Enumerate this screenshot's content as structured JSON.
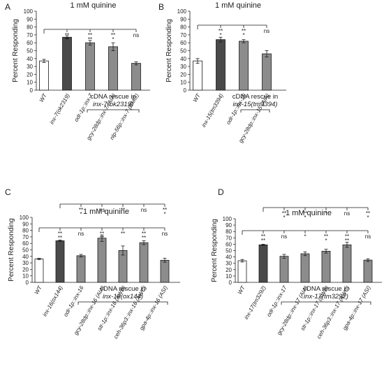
{
  "chart_data": [
    {
      "type": "bar",
      "panel": "A",
      "title": "1 mM quinine",
      "ylabel": "Percent Responding",
      "ylim": [
        0,
        100
      ],
      "yticks": [
        0,
        10,
        20,
        30,
        40,
        50,
        60,
        70,
        80,
        90,
        100
      ],
      "categories": [
        "WT",
        "inx-7(ok2319)",
        "odr-1p::inx-7",
        "gcy-28dp::inx-7 (AIA)",
        "nlp-56p::inx-7 (RMG)"
      ],
      "values": [
        37,
        67,
        60,
        55,
        34
      ],
      "errors": [
        2,
        2,
        3,
        5,
        2
      ],
      "fill": [
        "white",
        "dark",
        "gray",
        "gray",
        "gray"
      ],
      "rescue_label": [
        "cDNA rescue in",
        "inx-7(ok2319)"
      ],
      "rescue_start": 2,
      "comparisons": [
        {
          "ref": 0,
          "sig": [
            "**\n**",
            "**\n**",
            "**\n*",
            "ns"
          ]
        }
      ]
    },
    {
      "type": "bar",
      "panel": "B",
      "title": "1 mM quinine",
      "ylabel": "Percent Responding",
      "ylim": [
        0,
        100
      ],
      "yticks": [
        0,
        10,
        20,
        30,
        40,
        50,
        60,
        70,
        80,
        90,
        100
      ],
      "categories": [
        "WT",
        "inx-15(tm3394)",
        "odr-1p::inx-15",
        "gcy-28dp::inx-15 (AIA)"
      ],
      "values": [
        37,
        64,
        62,
        46
      ],
      "errors": [
        3,
        3,
        2,
        4
      ],
      "fill": [
        "white",
        "dark",
        "gray",
        "gray"
      ],
      "rescue_label": [
        "cDNA rescue in",
        "inx-15(tm3394)"
      ],
      "rescue_start": 2,
      "comparisons": [
        {
          "ref": 0,
          "sig": [
            "**\n*",
            "**\n*",
            "ns"
          ]
        }
      ]
    },
    {
      "type": "bar",
      "panel": "C",
      "title": "1 mM quinine",
      "ylabel": "Percent Responding",
      "ylim": [
        0,
        100
      ],
      "yticks": [
        0,
        10,
        20,
        30,
        40,
        50,
        60,
        70,
        80,
        90,
        100
      ],
      "categories": [
        "WT",
        "inx-16(ox144)",
        "odr-1p::inx-16",
        "gcy-28dp::inx-16 (AIA)",
        "str-1p::inx-16 (AWB)",
        "ceh-36p3::inx-16 (AWC)",
        "gpa-4p::inx-16 (ASI)"
      ],
      "values": [
        36,
        64,
        41,
        68,
        49,
        61,
        34
      ],
      "errors": [
        1,
        1,
        2,
        5,
        7,
        3,
        3
      ],
      "fill": [
        "white",
        "dark",
        "gray",
        "gray",
        "gray",
        "gray",
        "gray"
      ],
      "rescue_label": [
        "cDNA rescue in",
        "inx-16(ox144)"
      ],
      "rescue_start": 2,
      "comparisons": [
        {
          "ref": 1,
          "sig": [
            "**\n*",
            "ns",
            "**",
            "ns",
            "**\n*"
          ]
        },
        {
          "ref": 0,
          "sig": [
            "**\n**",
            "ns",
            "**\n**",
            "**",
            "**\n**",
            "ns"
          ]
        }
      ]
    },
    {
      "type": "bar",
      "panel": "D",
      "title": "1 mM quinine",
      "ylabel": "Percent Responding",
      "ylim": [
        0,
        100
      ],
      "yticks": [
        0,
        10,
        20,
        30,
        40,
        50,
        60,
        70,
        80,
        90,
        100
      ],
      "categories": [
        "WT",
        "inx-17(tm3292)",
        "odr-1p::inx-17",
        "gcy-28dp::inx-17 (AIA)",
        "str-1p::inx-17 (AWB)",
        "ceh-36p3::inx-17 (AWC)",
        "gpa-4p::inx-17 (ASI)"
      ],
      "values": [
        34,
        59,
        41,
        45,
        49,
        59,
        35
      ],
      "errors": [
        2,
        1,
        3,
        3,
        3,
        4,
        2
      ],
      "fill": [
        "white",
        "dark",
        "gray",
        "gray",
        "gray",
        "gray",
        "gray"
      ],
      "rescue_label": [
        "cDNA rescue in",
        "inx-17(tm3292)"
      ],
      "rescue_start": 2,
      "comparisons": [
        {
          "ref": 1,
          "sig": [
            "**\n*",
            "**\n*",
            "*",
            "ns",
            "**\n*"
          ]
        },
        {
          "ref": 0,
          "sig": [
            "**\n**",
            "ns",
            "*",
            "**\n*",
            "**\n**",
            "ns"
          ]
        }
      ]
    }
  ],
  "colors": {
    "white": "#ffffff",
    "dark": "#4a4a4a",
    "gray": "#8c8c8c",
    "ink": "#1a1a1a"
  }
}
